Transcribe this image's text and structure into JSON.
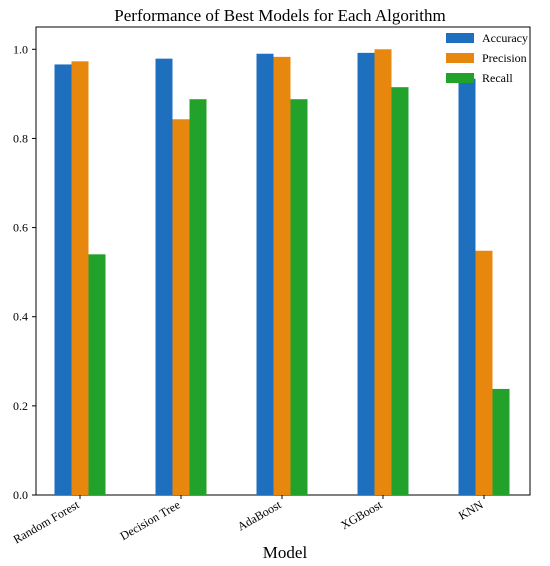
{
  "chart_data": {
    "type": "bar",
    "title": "Performance of Best Models for Each Algorithm",
    "xlabel": "Model",
    "ylabel": "",
    "ylim": [
      0,
      1.05
    ],
    "yticks": [
      0.0,
      0.2,
      0.4,
      0.6,
      0.8,
      1.0
    ],
    "ytick_labels": [
      "0.0",
      "0.2",
      "0.4",
      "0.6",
      "0.8",
      "1.0"
    ],
    "categories": [
      "Random Forest",
      "Decision Tree",
      "AdaBoost",
      "XGBoost",
      "KNN"
    ],
    "series": [
      {
        "name": "Accuracy",
        "color": "#1f6fbf",
        "values": [
          0.966,
          0.979,
          0.99,
          0.992,
          0.934
        ]
      },
      {
        "name": "Precision",
        "color": "#e8870e",
        "values": [
          0.973,
          0.843,
          0.983,
          1.0,
          0.548
        ]
      },
      {
        "name": "Recall",
        "color": "#22a22a",
        "values": [
          0.54,
          0.888,
          0.888,
          0.915,
          0.238
        ]
      }
    ],
    "legend_position": "top-right",
    "grid": false
  }
}
